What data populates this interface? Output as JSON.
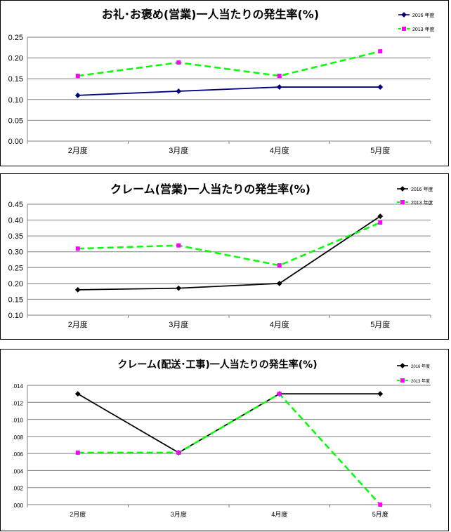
{
  "chart_data": [
    {
      "type": "line",
      "title": "お礼･お褒め(営業)一人当たりの発生率(%)",
      "categories": [
        "2月度",
        "3月度",
        "4月度",
        "5月度"
      ],
      "ylim": [
        0,
        0.25
      ],
      "yticks": [
        "0.00",
        "0.05",
        "0.10",
        "0.15",
        "0.20",
        "0.25"
      ],
      "grid": true,
      "legend": "top-right",
      "series": [
        {
          "name": "2016 年度",
          "values": [
            0.11,
            0.12,
            0.13,
            0.13
          ],
          "color": "#000080",
          "marker": "diamond",
          "dash": "solid"
        },
        {
          "name": "2013 年度",
          "values": [
            0.157,
            0.189,
            0.157,
            0.216
          ],
          "color": "#00ff00",
          "marker": "square",
          "marker_color": "#ff00ff",
          "dash": "dashed"
        }
      ]
    },
    {
      "type": "line",
      "title": "クレーム(営業)一人当たりの発生率(%)",
      "categories": [
        "2月度",
        "3月度",
        "4月度",
        "5月度"
      ],
      "ylim": [
        0.1,
        0.45
      ],
      "yticks": [
        "0.10",
        "0.15",
        "0.20",
        "0.25",
        "0.30",
        "0.35",
        "0.40",
        "0.45"
      ],
      "grid": true,
      "legend": "top-right",
      "series": [
        {
          "name": "2016 年度",
          "values": [
            0.18,
            0.185,
            0.2,
            0.412
          ],
          "color": "#000000",
          "marker": "diamond",
          "dash": "solid"
        },
        {
          "name": "2013 年度",
          "values": [
            0.31,
            0.32,
            0.257,
            0.392
          ],
          "color": "#00ff00",
          "marker": "square",
          "marker_color": "#ff00ff",
          "dash": "dashed"
        }
      ]
    },
    {
      "type": "line",
      "title": "クレーム(配送･工事)一人当たりの発生率(%)",
      "categories": [
        "2月度",
        "3月度",
        "4月度",
        "5月度"
      ],
      "ylim": [
        0,
        0.014
      ],
      "yticks": [
        ".000",
        ".002",
        ".004",
        ".006",
        ".008",
        ".010",
        ".012",
        ".014"
      ],
      "grid": true,
      "legend": "top-right",
      "series": [
        {
          "name": "2016 年度",
          "values": [
            0.013,
            0.0061,
            0.013,
            0.013
          ],
          "color": "#000000",
          "marker": "diamond",
          "dash": "solid"
        },
        {
          "name": "2013 年度",
          "values": [
            0.0061,
            0.0061,
            0.013,
            0.0
          ],
          "color": "#00ff00",
          "marker": "square",
          "marker_color": "#ff00ff",
          "dash": "dashed"
        }
      ]
    }
  ]
}
